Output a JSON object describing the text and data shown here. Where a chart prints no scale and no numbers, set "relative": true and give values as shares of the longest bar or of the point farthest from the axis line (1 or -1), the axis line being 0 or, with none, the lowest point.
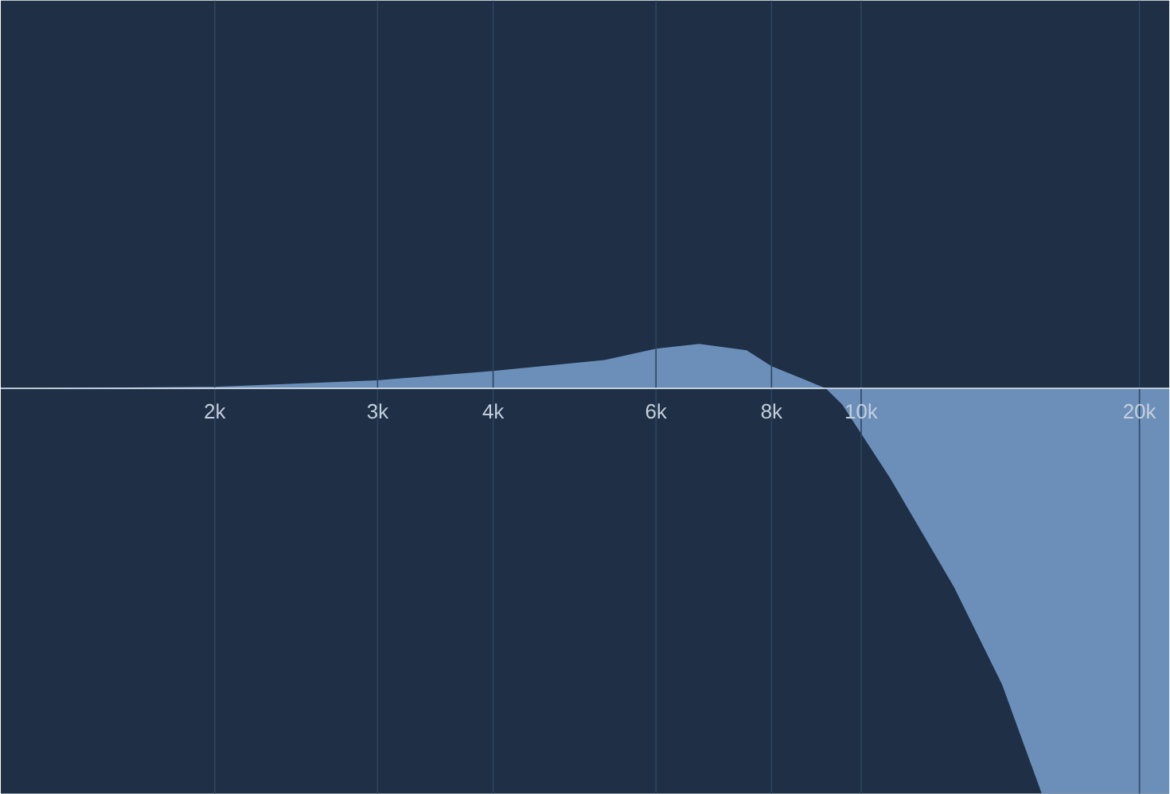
{
  "chart_data": {
    "type": "area",
    "relative": true,
    "log": "x",
    "grid": "x",
    "color": "#6b8fb9",
    "x": [
      1174,
      2000,
      3000,
      4000,
      5280,
      6000,
      6680,
      7520,
      8000,
      9160,
      9540,
      10740,
      12600,
      14200,
      15680,
      21540
    ],
    "values": [
      0,
      0.004,
      0.02,
      0.043,
      0.07,
      0.098,
      0.11,
      0.094,
      0.055,
      0,
      -0.04,
      -0.22,
      -0.49,
      -0.73,
      -1,
      -1
    ],
    "xlim": [
      1174,
      21540
    ],
    "xticks": [
      {
        "value": 2000,
        "label": "2k"
      },
      {
        "value": 3000,
        "label": "3k"
      },
      {
        "value": 4000,
        "label": "4k"
      },
      {
        "value": 6000,
        "label": "6k"
      },
      {
        "value": 8000,
        "label": "8k"
      },
      {
        "value": 10000,
        "label": "10k"
      },
      {
        "value": 20000,
        "label": "20k"
      }
    ]
  }
}
